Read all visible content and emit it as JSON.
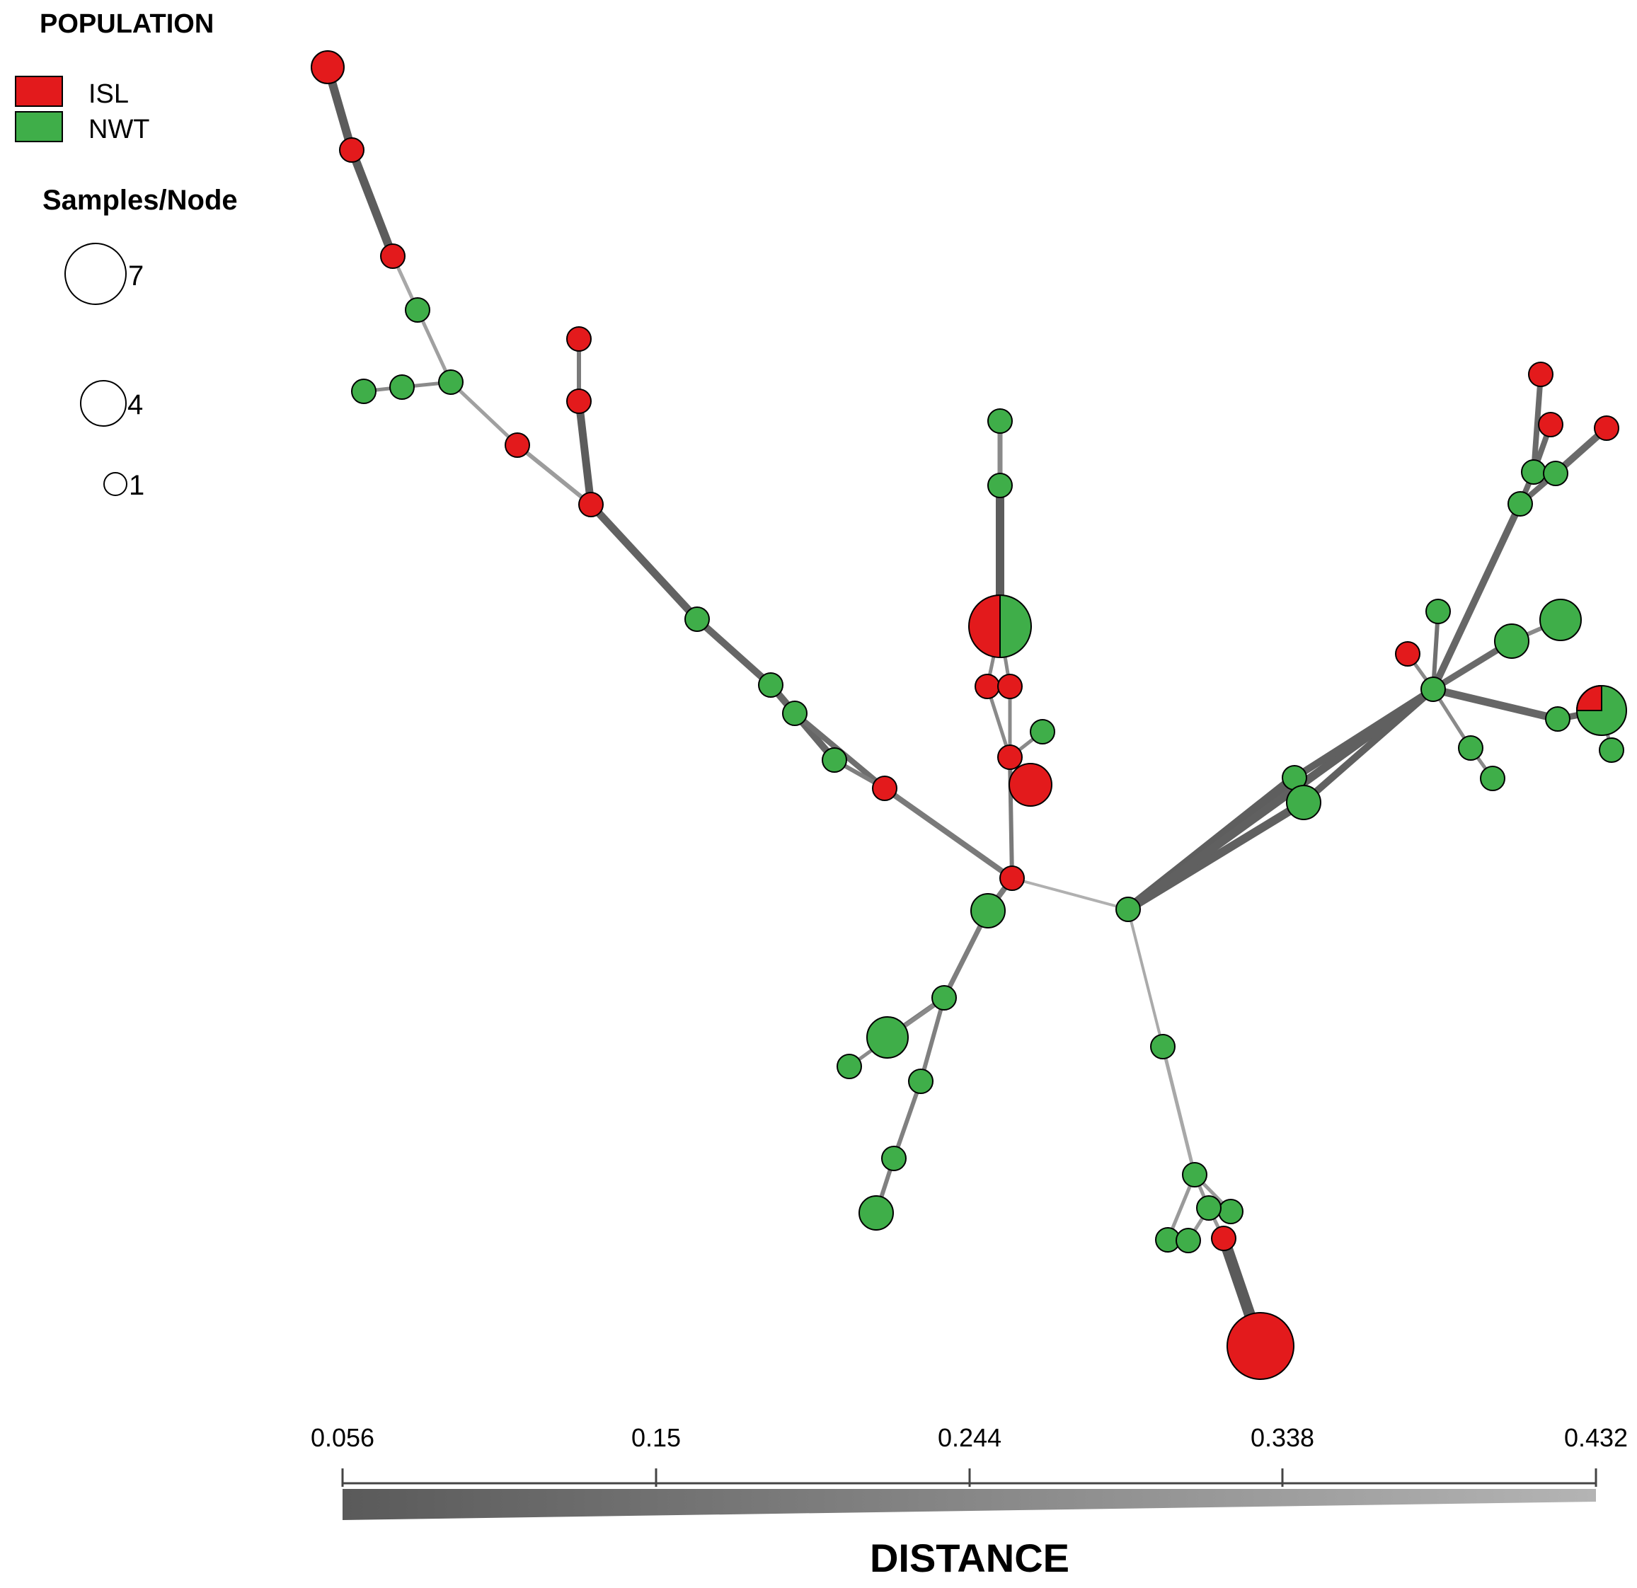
{
  "legend": {
    "population_title": "POPULATION",
    "populations": [
      {
        "label": "ISL",
        "color": "#e31a1c"
      },
      {
        "label": "NWT",
        "color": "#3fae49"
      }
    ],
    "size_title": "Samples/Node",
    "sizes": [
      {
        "label": "7",
        "samples": 7
      },
      {
        "label": "4",
        "samples": 4
      },
      {
        "label": "1",
        "samples": 1
      }
    ]
  },
  "axis": {
    "title": "DISTANCE",
    "ticks": [
      "0.056",
      "0.15",
      "0.244",
      "0.338",
      "0.432"
    ],
    "range": [
      0.056,
      0.432
    ]
  },
  "network": {
    "node_border": "#000000",
    "edge_color_near": "#5a5a5a",
    "edge_color_far": "#b4b4b4"
  }
}
